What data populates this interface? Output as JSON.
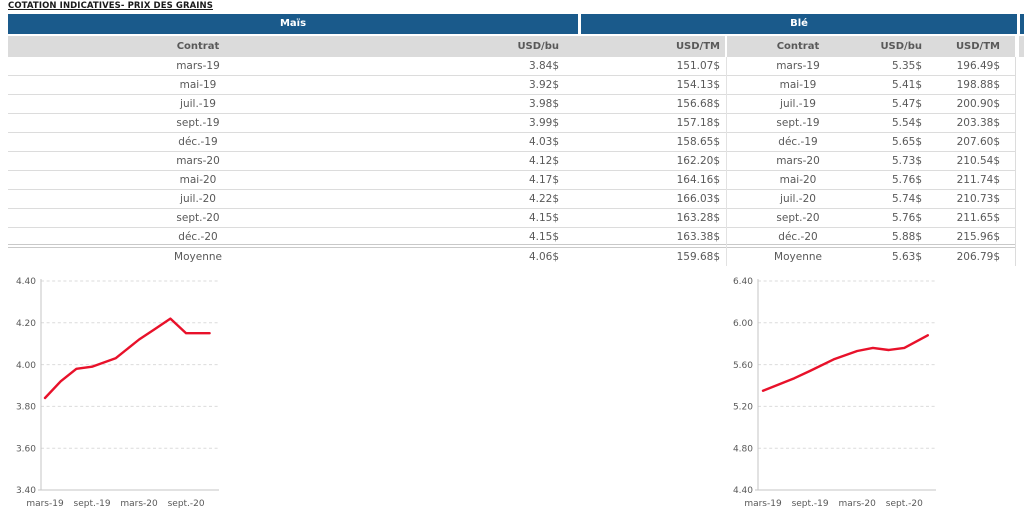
{
  "page": {
    "title": "COTATION INDICATIVES- PRIX DES GRAINS"
  },
  "colors": {
    "header_blue": "#1A5A8B",
    "header_gray": "#DBDBDB",
    "text_gray": "#595959",
    "row_border": "#DCDCDC",
    "chart_line_red": "#E8112A",
    "chart_grid": "#DBDBDB",
    "chart_axis": "#C6C6C6"
  },
  "table": {
    "sections": [
      {
        "title": "Maïs"
      },
      {
        "title": "Blé"
      }
    ],
    "columns": [
      "Contrat",
      "USD/bu",
      "USD/TM"
    ],
    "rows": [
      {
        "contrat": "mars-19",
        "mais_bu": "3.84$",
        "mais_tm": "151.07$",
        "ble_bu": "5.35$",
        "ble_tm": "196.49$",
        "avg": false
      },
      {
        "contrat": "mai-19",
        "mais_bu": "3.92$",
        "mais_tm": "154.13$",
        "ble_bu": "5.41$",
        "ble_tm": "198.88$",
        "avg": false
      },
      {
        "contrat": "juil.-19",
        "mais_bu": "3.98$",
        "mais_tm": "156.68$",
        "ble_bu": "5.47$",
        "ble_tm": "200.90$",
        "avg": false
      },
      {
        "contrat": "sept.-19",
        "mais_bu": "3.99$",
        "mais_tm": "157.18$",
        "ble_bu": "5.54$",
        "ble_tm": "203.38$",
        "avg": false
      },
      {
        "contrat": "déc.-19",
        "mais_bu": "4.03$",
        "mais_tm": "158.65$",
        "ble_bu": "5.65$",
        "ble_tm": "207.60$",
        "avg": false
      },
      {
        "contrat": "mars-20",
        "mais_bu": "4.12$",
        "mais_tm": "162.20$",
        "ble_bu": "5.73$",
        "ble_tm": "210.54$",
        "avg": false
      },
      {
        "contrat": "mai-20",
        "mais_bu": "4.17$",
        "mais_tm": "164.16$",
        "ble_bu": "5.76$",
        "ble_tm": "211.74$",
        "avg": false
      },
      {
        "contrat": "juil.-20",
        "mais_bu": "4.22$",
        "mais_tm": "166.03$",
        "ble_bu": "5.74$",
        "ble_tm": "210.73$",
        "avg": false
      },
      {
        "contrat": "sept.-20",
        "mais_bu": "4.15$",
        "mais_tm": "163.28$",
        "ble_bu": "5.76$",
        "ble_tm": "211.65$",
        "avg": false
      },
      {
        "contrat": "déc.-20",
        "mais_bu": "4.15$",
        "mais_tm": "163.38$",
        "ble_bu": "5.88$",
        "ble_tm": "215.96$",
        "avg": false
      },
      {
        "contrat": "Moyenne",
        "mais_bu": "4.06$",
        "mais_tm": "159.68$",
        "ble_bu": "5.63$",
        "ble_tm": "206.79$",
        "avg": true
      }
    ]
  },
  "chart_data": [
    {
      "type": "line",
      "title": "Maïs",
      "ylabel": "USD/bu",
      "ylim": [
        3.4,
        4.4
      ],
      "yticks": [
        3.4,
        3.6,
        3.8,
        4.0,
        4.2,
        4.4
      ],
      "grid": "dashed-horizontal",
      "legend": "none",
      "x_months": [
        0,
        2,
        4,
        6,
        9,
        12,
        14,
        16,
        18,
        21
      ],
      "x_labels": [
        "mars-19",
        "mai-19",
        "juil.-19",
        "sept.-19",
        "déc.-19",
        "mars-20",
        "mai-20",
        "juil.-20",
        "sept.-20",
        "déc.-20"
      ],
      "xticks": [
        {
          "month": 0,
          "label": "mars-19"
        },
        {
          "month": 6,
          "label": "sept.-19"
        },
        {
          "month": 12,
          "label": "mars-20"
        },
        {
          "month": 18,
          "label": "sept.-20"
        }
      ],
      "series": [
        {
          "name": "Maïs USD/bu",
          "values": [
            3.84,
            3.92,
            3.98,
            3.99,
            4.03,
            4.12,
            4.17,
            4.22,
            4.15,
            4.15
          ]
        }
      ],
      "line_color": "#E8112A"
    },
    {
      "type": "line",
      "title": "Blé",
      "ylabel": "USD/bu",
      "ylim": [
        4.4,
        6.4
      ],
      "yticks": [
        4.4,
        4.8,
        5.2,
        5.6,
        6.0,
        6.4
      ],
      "grid": "dashed-horizontal",
      "legend": "none",
      "x_months": [
        0,
        2,
        4,
        6,
        9,
        12,
        14,
        16,
        18,
        21
      ],
      "x_labels": [
        "mars-19",
        "mai-19",
        "juil.-19",
        "sept.-19",
        "déc.-19",
        "mars-20",
        "mai-20",
        "juil.-20",
        "sept.-20",
        "déc.-20"
      ],
      "xticks": [
        {
          "month": 0,
          "label": "mars-19"
        },
        {
          "month": 6,
          "label": "sept.-19"
        },
        {
          "month": 12,
          "label": "mars-20"
        },
        {
          "month": 18,
          "label": "sept.-20"
        }
      ],
      "series": [
        {
          "name": "Blé USD/bu",
          "values": [
            5.35,
            5.41,
            5.47,
            5.54,
            5.65,
            5.73,
            5.76,
            5.74,
            5.76,
            5.88
          ]
        }
      ],
      "line_color": "#E8112A"
    }
  ]
}
